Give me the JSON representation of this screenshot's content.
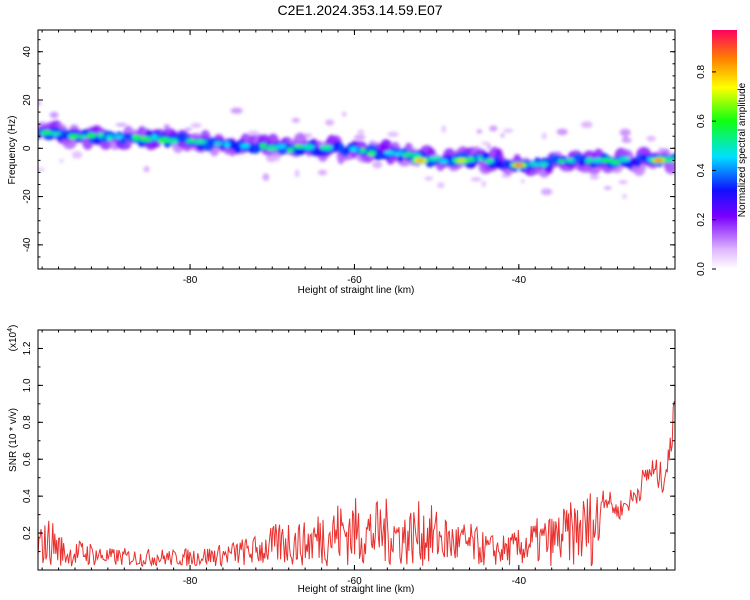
{
  "title": "C2E1.2024.353.14.59.E07",
  "chart_data": [
    {
      "type": "heatmap",
      "xlabel": "Height of straight line (km)",
      "ylabel": "Frequency (Hz)",
      "xlim": [
        -98.5,
        -21
      ],
      "ylim": [
        -50,
        49
      ],
      "x_ticks": [
        "-80",
        "-60",
        "-40"
      ],
      "y_ticks": [
        "40",
        "20",
        "0",
        "-20",
        "-40"
      ],
      "colorbar_label": "Normalized spectral amplitude",
      "colorbar_ticks": [
        "0.0",
        "0.2",
        "0.4",
        "0.6",
        "0.8"
      ],
      "colorbar_range": [
        0,
        0.97
      ],
      "ridge": {
        "x": [
          -97,
          -92,
          -88,
          -84,
          -80,
          -76,
          -72,
          -68,
          -64,
          -60,
          -56,
          -52,
          -48,
          -44,
          -40,
          -36,
          -32,
          -28,
          -24,
          -21
        ],
        "frequency": [
          6,
          5,
          4,
          4,
          3,
          1,
          1,
          0,
          0,
          -1,
          -2,
          -4,
          -5,
          -5,
          -7,
          -6,
          -5,
          -5,
          -5,
          -5
        ]
      },
      "peaks": [
        {
          "x": -52,
          "frequency": -5,
          "amplitude": 0.9
        },
        {
          "x": -47,
          "frequency": -5,
          "amplitude": 0.8
        },
        {
          "x": -40,
          "frequency": -7,
          "amplitude": 0.97
        },
        {
          "x": -23,
          "frequency": -5,
          "amplitude": 0.95
        }
      ]
    },
    {
      "type": "line",
      "xlabel": "Height of straight line (km)",
      "ylabel": "SNR (10 * v/v)",
      "y_multiplier": "(x10",
      "y_multiplier_exp": "4",
      "xlim": [
        -98.5,
        -21
      ],
      "ylim": [
        0,
        1.3
      ],
      "x_ticks": [
        "-80",
        "-60",
        "-40"
      ],
      "y_ticks": [
        "1.2",
        "1.0",
        "0.8",
        "0.6",
        "0.4",
        "0.2"
      ],
      "color": "#e8312f",
      "series_envelope": {
        "x": [
          -98.5,
          -97,
          -95,
          -93,
          -90,
          -88,
          -86,
          -84,
          -82,
          -80,
          -78,
          -76,
          -74,
          -72,
          -70,
          -68,
          -66,
          -64,
          -62,
          -60,
          -58,
          -56,
          -54,
          -52,
          -50,
          -48,
          -46,
          -44,
          -42,
          -40,
          -38,
          -36,
          -34,
          -32,
          -30,
          -28,
          -26,
          -24,
          -22.5,
          -21.5,
          -21
        ],
        "y": [
          0.2,
          0.28,
          0.12,
          0.15,
          0.1,
          0.1,
          0.09,
          0.1,
          0.09,
          0.1,
          0.11,
          0.12,
          0.15,
          0.17,
          0.22,
          0.27,
          0.24,
          0.33,
          0.36,
          0.38,
          0.35,
          0.37,
          0.3,
          0.36,
          0.32,
          0.25,
          0.24,
          0.18,
          0.17,
          0.2,
          0.26,
          0.28,
          0.34,
          0.4,
          0.47,
          0.35,
          0.44,
          0.6,
          0.55,
          0.7,
          1.25
        ]
      }
    }
  ]
}
